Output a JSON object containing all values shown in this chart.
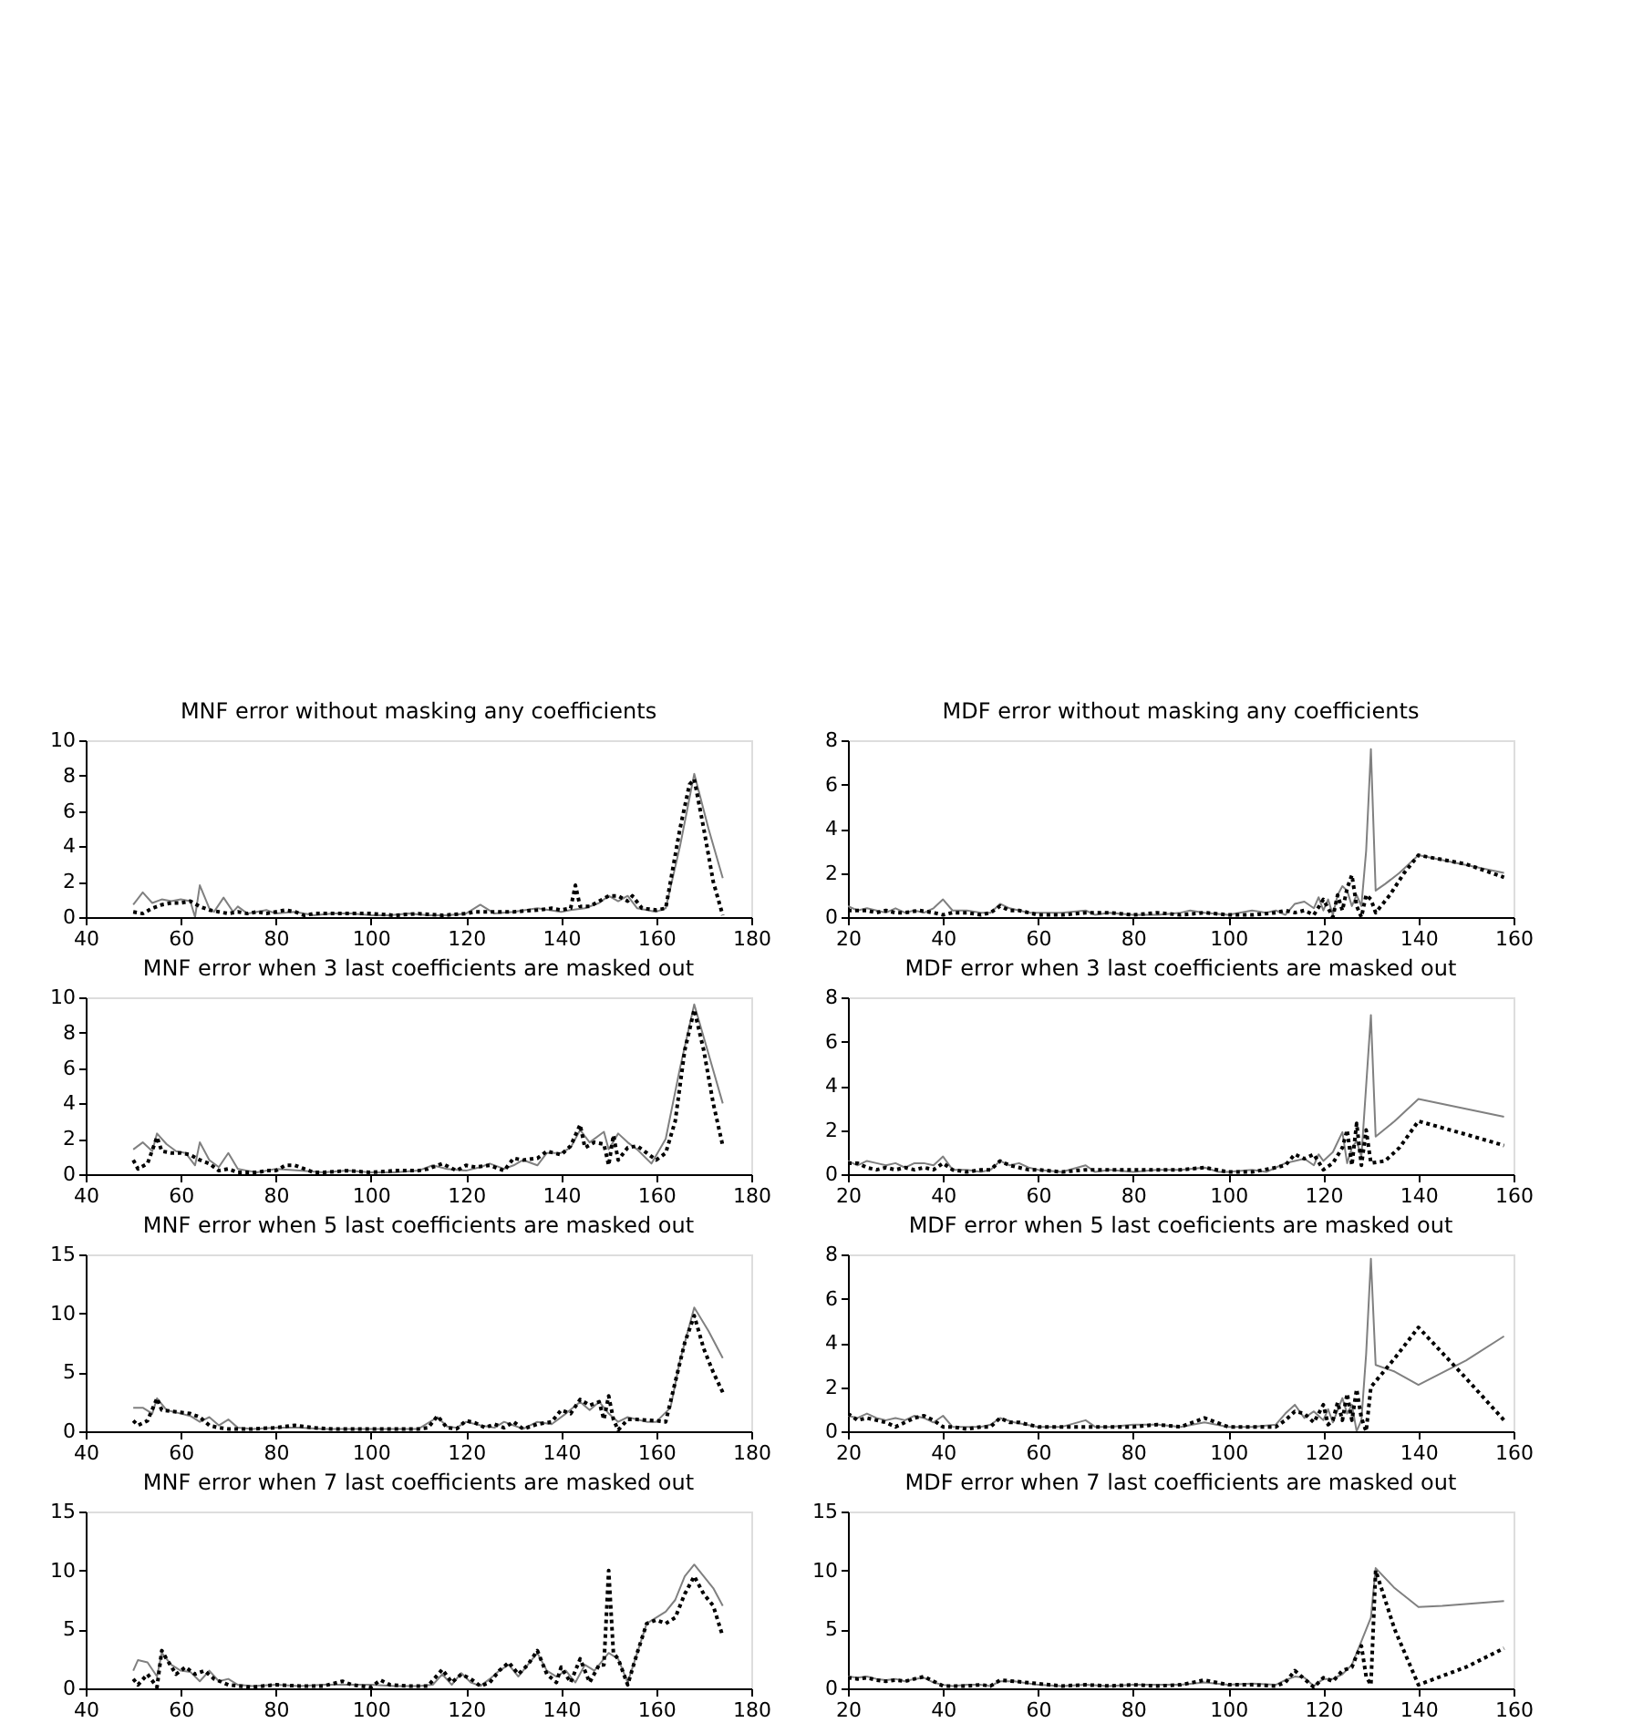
{
  "chart_data": [
    {
      "type": "line",
      "title": "MNF error without masking any coefficients",
      "xlim": [
        40,
        180
      ],
      "xticks": [
        40,
        60,
        80,
        100,
        120,
        140,
        160,
        180
      ],
      "ylim": [
        0,
        10
      ],
      "yticks": [
        0,
        2,
        4,
        6,
        8,
        10
      ],
      "grid": false,
      "series": [
        {
          "color": "#808080",
          "line_style": "solid",
          "x": [
            50,
            52,
            54,
            56,
            58,
            60,
            62,
            63,
            64,
            66,
            67,
            69,
            71,
            72,
            74,
            76,
            78,
            80,
            84,
            88,
            92,
            96,
            100,
            104,
            108,
            112,
            116,
            120,
            123,
            126,
            130,
            135,
            140,
            142,
            145,
            148,
            150,
            152,
            154,
            156,
            160,
            162,
            165,
            168,
            171,
            174
          ],
          "values": [
            0.7,
            1.4,
            0.8,
            1.0,
            0.9,
            1.0,
            0.9,
            0.0,
            1.8,
            0.5,
            0.3,
            1.1,
            0.3,
            0.6,
            0.2,
            0.3,
            0.4,
            0.2,
            0.3,
            0.1,
            0.2,
            0.2,
            0.1,
            0.1,
            0.2,
            0.1,
            0.1,
            0.2,
            0.7,
            0.2,
            0.3,
            0.5,
            0.3,
            0.4,
            0.5,
            0.8,
            1.2,
            0.9,
            1.2,
            0.5,
            0.3,
            0.5,
            4.0,
            8.1,
            5.0,
            2.2
          ]
        },
        {
          "color": "#000000",
          "line_style": "dotted",
          "x": [
            50,
            52,
            54,
            56,
            58,
            60,
            62,
            64,
            66,
            68,
            70,
            72,
            74,
            76,
            78,
            80,
            82,
            84,
            86,
            88,
            90,
            95,
            100,
            105,
            110,
            115,
            120,
            122,
            125,
            130,
            135,
            138,
            140,
            142,
            143,
            144,
            146,
            148,
            150,
            152,
            154,
            155,
            157,
            160,
            162,
            163,
            165,
            167,
            168,
            170,
            172,
            174
          ],
          "values": [
            0.3,
            0.2,
            0.5,
            0.7,
            0.8,
            0.8,
            0.9,
            0.6,
            0.4,
            0.3,
            0.2,
            0.3,
            0.2,
            0.3,
            0.2,
            0.3,
            0.4,
            0.3,
            0.1,
            0.2,
            0.2,
            0.2,
            0.2,
            0.1,
            0.2,
            0.1,
            0.2,
            0.3,
            0.3,
            0.3,
            0.4,
            0.5,
            0.4,
            0.5,
            1.8,
            0.6,
            0.6,
            0.9,
            1.2,
            1.2,
            0.9,
            1.2,
            0.5,
            0.4,
            0.5,
            2.0,
            5.0,
            7.5,
            7.8,
            5.0,
            2.0,
            0.1
          ]
        }
      ]
    },
    {
      "type": "line",
      "title": "MDF error without masking any coefficients",
      "xlim": [
        20,
        160
      ],
      "xticks": [
        20,
        40,
        60,
        80,
        100,
        120,
        140,
        160
      ],
      "ylim": [
        0,
        8
      ],
      "yticks": [
        0,
        2,
        4,
        6,
        8
      ],
      "grid": false,
      "series": [
        {
          "color": "#808080",
          "line_style": "solid",
          "x": [
            20,
            22,
            24,
            26,
            28,
            30,
            32,
            34,
            36,
            38,
            40,
            42,
            45,
            48,
            50,
            52,
            54,
            56,
            58,
            60,
            65,
            70,
            72,
            75,
            80,
            85,
            90,
            92,
            95,
            100,
            105,
            108,
            110,
            112,
            114,
            116,
            118,
            119,
            120,
            121,
            122,
            123,
            124,
            125,
            126,
            127,
            128,
            129,
            130,
            131,
            133,
            136,
            140,
            158
          ],
          "values": [
            0.5,
            0.3,
            0.4,
            0.3,
            0.2,
            0.4,
            0.2,
            0.3,
            0.2,
            0.4,
            0.8,
            0.3,
            0.3,
            0.2,
            0.2,
            0.6,
            0.4,
            0.3,
            0.2,
            0.2,
            0.2,
            0.3,
            0.1,
            0.2,
            0.1,
            0.1,
            0.2,
            0.3,
            0.2,
            0.1,
            0.3,
            0.2,
            0.3,
            0.1,
            0.6,
            0.7,
            0.4,
            0.9,
            0.3,
            0.8,
            0.1,
            1.0,
            1.4,
            1.2,
            0.5,
            1.0,
            0.5,
            3.0,
            7.6,
            1.2,
            1.5,
            2.0,
            2.8,
            2.0
          ]
        },
        {
          "color": "#000000",
          "line_style": "dotted",
          "x": [
            20,
            22,
            24,
            26,
            28,
            30,
            32,
            35,
            38,
            40,
            42,
            45,
            48,
            50,
            52,
            54,
            56,
            58,
            60,
            65,
            70,
            75,
            80,
            85,
            90,
            95,
            100,
            105,
            110,
            112,
            114,
            116,
            118,
            120,
            122,
            123,
            124,
            125,
            126,
            127,
            128,
            129,
            130,
            131,
            134,
            137,
            140,
            150,
            158
          ],
          "values": [
            0.3,
            0.3,
            0.3,
            0.2,
            0.3,
            0.2,
            0.2,
            0.3,
            0.2,
            0.1,
            0.2,
            0.2,
            0.1,
            0.2,
            0.5,
            0.3,
            0.3,
            0.2,
            0.1,
            0.1,
            0.2,
            0.2,
            0.1,
            0.2,
            0.1,
            0.2,
            0.1,
            0.1,
            0.2,
            0.3,
            0.2,
            0.3,
            0.1,
            0.8,
            0.0,
            1.0,
            0.3,
            1.3,
            1.9,
            0.5,
            0.0,
            1.0,
            0.8,
            0.2,
            1.0,
            2.0,
            2.8,
            2.4,
            1.8
          ]
        }
      ]
    },
    {
      "type": "line",
      "title": "MNF error when 3 last coefficients are masked out",
      "xlim": [
        40,
        180
      ],
      "xticks": [
        40,
        60,
        80,
        100,
        120,
        140,
        160,
        180
      ],
      "ylim": [
        0,
        10
      ],
      "yticks": [
        0,
        2,
        4,
        6,
        8,
        10
      ],
      "grid": false,
      "series": [
        {
          "color": "#808080",
          "line_style": "solid",
          "x": [
            50,
            52,
            54,
            55,
            57,
            59,
            61,
            63,
            64,
            66,
            68,
            70,
            72,
            74,
            76,
            78,
            80,
            85,
            90,
            95,
            100,
            105,
            110,
            113,
            116,
            120,
            123,
            125,
            128,
            130,
            132,
            135,
            137,
            140,
            142,
            144,
            146,
            149,
            150,
            152,
            154,
            156,
            159,
            162,
            165,
            168,
            171,
            174
          ],
          "values": [
            1.4,
            1.8,
            1.3,
            2.3,
            1.7,
            1.3,
            1.2,
            0.5,
            1.8,
            0.8,
            0.4,
            1.2,
            0.3,
            0.2,
            0.1,
            0.2,
            0.3,
            0.2,
            0.1,
            0.2,
            0.1,
            0.1,
            0.2,
            0.5,
            0.3,
            0.2,
            0.4,
            0.6,
            0.3,
            0.5,
            0.8,
            0.5,
            1.2,
            1.2,
            1.5,
            2.5,
            1.8,
            2.4,
            1.4,
            2.3,
            1.8,
            1.4,
            0.6,
            2.0,
            6.0,
            9.6,
            6.8,
            4.0
          ]
        },
        {
          "color": "#000000",
          "line_style": "dotted",
          "x": [
            50,
            51,
            53,
            55,
            56,
            58,
            60,
            62,
            64,
            66,
            68,
            70,
            72,
            74,
            76,
            78,
            80,
            82,
            84,
            86,
            88,
            90,
            95,
            100,
            105,
            110,
            112,
            115,
            118,
            120,
            122,
            125,
            128,
            130,
            132,
            135,
            137,
            140,
            142,
            144,
            145,
            147,
            149,
            150,
            151,
            152,
            154,
            156,
            158,
            160,
            162,
            164,
            166,
            168,
            170,
            172,
            174
          ],
          "values": [
            0.8,
            0.3,
            0.6,
            2.1,
            1.3,
            1.2,
            1.2,
            1.1,
            0.8,
            0.6,
            0.2,
            0.3,
            0.1,
            0.1,
            0.1,
            0.2,
            0.2,
            0.5,
            0.5,
            0.3,
            0.1,
            0.1,
            0.2,
            0.1,
            0.2,
            0.2,
            0.3,
            0.6,
            0.2,
            0.5,
            0.4,
            0.5,
            0.2,
            0.9,
            0.8,
            0.9,
            1.3,
            1.1,
            1.6,
            2.8,
            1.5,
            1.8,
            1.7,
            0.5,
            2.2,
            0.8,
            1.5,
            1.6,
            1.2,
            0.8,
            1.2,
            3.0,
            7.0,
            9.3,
            7.0,
            4.0,
            1.6
          ]
        }
      ]
    },
    {
      "type": "line",
      "title": "MDF error when 3 last coefficients are masked out",
      "xlim": [
        20,
        160
      ],
      "xticks": [
        20,
        40,
        60,
        80,
        100,
        120,
        140,
        160
      ],
      "ylim": [
        0,
        8
      ],
      "yticks": [
        0,
        2,
        4,
        6,
        8
      ],
      "grid": false,
      "series": [
        {
          "color": "#808080",
          "line_style": "solid",
          "x": [
            20,
            22,
            24,
            26,
            28,
            30,
            32,
            34,
            36,
            38,
            40,
            42,
            45,
            48,
            50,
            52,
            54,
            56,
            58,
            60,
            65,
            70,
            72,
            75,
            80,
            85,
            90,
            95,
            98,
            100,
            105,
            108,
            110,
            112,
            114,
            116,
            118,
            119,
            120,
            122,
            124,
            125,
            126,
            127,
            128,
            129,
            130,
            131,
            135,
            140,
            158
          ],
          "values": [
            0.6,
            0.4,
            0.6,
            0.5,
            0.4,
            0.5,
            0.3,
            0.5,
            0.5,
            0.4,
            0.8,
            0.2,
            0.2,
            0.1,
            0.2,
            0.6,
            0.4,
            0.5,
            0.3,
            0.2,
            0.1,
            0.4,
            0.1,
            0.2,
            0.1,
            0.2,
            0.2,
            0.3,
            0.1,
            0.1,
            0.2,
            0.1,
            0.3,
            0.5,
            0.6,
            0.7,
            0.4,
            0.9,
            0.6,
            1.0,
            1.9,
            0.5,
            1.2,
            1.5,
            0.8,
            4.0,
            7.2,
            1.7,
            2.4,
            3.4,
            2.6
          ]
        },
        {
          "color": "#000000",
          "line_style": "dotted",
          "x": [
            20,
            22,
            24,
            26,
            28,
            30,
            32,
            34,
            36,
            38,
            40,
            42,
            45,
            48,
            50,
            52,
            54,
            56,
            58,
            60,
            65,
            70,
            75,
            80,
            85,
            90,
            95,
            100,
            105,
            110,
            112,
            114,
            116,
            118,
            120,
            122,
            124,
            125,
            126,
            127,
            128,
            129,
            130,
            133,
            136,
            140,
            150,
            158
          ],
          "values": [
            0.5,
            0.5,
            0.3,
            0.2,
            0.3,
            0.2,
            0.3,
            0.2,
            0.3,
            0.2,
            0.5,
            0.2,
            0.1,
            0.2,
            0.2,
            0.6,
            0.4,
            0.3,
            0.2,
            0.2,
            0.1,
            0.2,
            0.2,
            0.2,
            0.2,
            0.2,
            0.3,
            0.1,
            0.1,
            0.3,
            0.4,
            0.9,
            0.7,
            0.9,
            0.2,
            0.5,
            1.2,
            2.0,
            0.4,
            2.3,
            0.4,
            2.0,
            0.5,
            0.6,
            1.2,
            2.4,
            1.8,
            1.3
          ]
        }
      ]
    },
    {
      "type": "line",
      "title": "MNF error when 5 last coefficients are masked out",
      "xlim": [
        40,
        180
      ],
      "xticks": [
        40,
        60,
        80,
        100,
        120,
        140,
        160,
        180
      ],
      "ylim": [
        0,
        15
      ],
      "yticks": [
        0,
        5,
        10,
        15
      ],
      "grid": false,
      "series": [
        {
          "color": "#808080",
          "line_style": "solid",
          "x": [
            50,
            52,
            54,
            55,
            57,
            60,
            62,
            64,
            66,
            68,
            70,
            72,
            75,
            80,
            85,
            90,
            95,
            100,
            105,
            110,
            114,
            116,
            118,
            120,
            123,
            126,
            128,
            130,
            132,
            135,
            138,
            141,
            144,
            146,
            148,
            150,
            152,
            154,
            158,
            160,
            163,
            165,
            168,
            171,
            174
          ],
          "values": [
            2.0,
            2.0,
            1.5,
            2.8,
            1.8,
            1.5,
            1.3,
            0.8,
            1.2,
            0.5,
            1.0,
            0.3,
            0.2,
            0.3,
            0.3,
            0.2,
            0.2,
            0.2,
            0.2,
            0.2,
            1.2,
            0.4,
            0.3,
            0.8,
            0.5,
            0.3,
            0.8,
            0.5,
            0.2,
            0.8,
            0.6,
            1.5,
            2.5,
            1.8,
            2.5,
            1.5,
            0.8,
            1.2,
            0.8,
            0.8,
            2.0,
            6.0,
            10.5,
            8.5,
            6.2
          ]
        },
        {
          "color": "#000000",
          "line_style": "dotted",
          "x": [
            50,
            51,
            53,
            55,
            56,
            58,
            60,
            62,
            64,
            66,
            68,
            70,
            75,
            80,
            84,
            88,
            92,
            96,
            100,
            105,
            110,
            112,
            114,
            116,
            118,
            120,
            122,
            124,
            126,
            128,
            130,
            132,
            135,
            138,
            140,
            142,
            144,
            146,
            148,
            149,
            150,
            151,
            152,
            154,
            156,
            160,
            162,
            163,
            166,
            168,
            170,
            172,
            174
          ],
          "values": [
            0.9,
            0.5,
            0.9,
            2.8,
            1.8,
            1.7,
            1.6,
            1.5,
            1.2,
            0.5,
            0.3,
            0.2,
            0.2,
            0.3,
            0.5,
            0.3,
            0.2,
            0.2,
            0.2,
            0.2,
            0.2,
            0.3,
            1.3,
            0.3,
            0.2,
            0.9,
            0.7,
            0.3,
            0.6,
            0.3,
            0.8,
            0.2,
            0.6,
            0.8,
            1.8,
            1.5,
            2.7,
            2.2,
            2.5,
            1.0,
            3.0,
            1.0,
            0.1,
            1.0,
            1.0,
            0.9,
            0.8,
            2.5,
            7.5,
            9.8,
            7.0,
            5.0,
            3.3
          ]
        }
      ]
    },
    {
      "type": "line",
      "title": "MDF error when 5 last coeficients are masked out",
      "xlim": [
        20,
        160
      ],
      "xticks": [
        20,
        40,
        60,
        80,
        100,
        120,
        140,
        160
      ],
      "ylim": [
        0,
        8
      ],
      "yticks": [
        0,
        2,
        4,
        6,
        8
      ],
      "grid": false,
      "series": [
        {
          "color": "#808080",
          "line_style": "solid",
          "x": [
            20,
            22,
            24,
            26,
            28,
            30,
            32,
            34,
            36,
            38,
            40,
            42,
            45,
            48,
            50,
            52,
            55,
            60,
            65,
            70,
            72,
            75,
            80,
            85,
            90,
            95,
            100,
            105,
            110,
            112,
            114,
            116,
            118,
            120,
            121,
            122,
            124,
            125,
            126,
            127,
            128,
            129,
            130,
            131,
            135,
            140,
            150,
            158
          ],
          "values": [
            0.7,
            0.6,
            0.8,
            0.6,
            0.5,
            0.6,
            0.5,
            0.7,
            0.6,
            0.4,
            0.7,
            0.2,
            0.2,
            0.2,
            0.3,
            0.6,
            0.4,
            0.2,
            0.2,
            0.5,
            0.2,
            0.2,
            0.3,
            0.3,
            0.2,
            0.4,
            0.2,
            0.2,
            0.3,
            0.8,
            1.2,
            0.6,
            0.9,
            0.5,
            1.0,
            0.4,
            1.5,
            0.8,
            1.2,
            0.0,
            0.5,
            3.5,
            7.8,
            3.0,
            2.7,
            2.1,
            3.2,
            4.3
          ]
        },
        {
          "color": "#000000",
          "line_style": "dotted",
          "x": [
            20,
            22,
            24,
            26,
            28,
            30,
            32,
            34,
            36,
            38,
            40,
            42,
            45,
            48,
            50,
            52,
            54,
            56,
            58,
            60,
            65,
            70,
            75,
            80,
            85,
            90,
            95,
            100,
            105,
            110,
            112,
            114,
            116,
            118,
            120,
            121,
            122,
            123,
            124,
            125,
            126,
            127,
            128,
            129,
            130,
            135,
            140,
            150,
            158
          ],
          "values": [
            0.8,
            0.5,
            0.6,
            0.5,
            0.4,
            0.2,
            0.4,
            0.6,
            0.7,
            0.5,
            0.2,
            0.2,
            0.1,
            0.2,
            0.2,
            0.6,
            0.4,
            0.4,
            0.3,
            0.2,
            0.2,
            0.2,
            0.2,
            0.2,
            0.3,
            0.2,
            0.6,
            0.2,
            0.2,
            0.2,
            0.5,
            0.9,
            0.8,
            0.4,
            1.2,
            0.3,
            0.5,
            1.3,
            0.5,
            1.7,
            0.5,
            1.9,
            0.6,
            0.0,
            2.0,
            3.3,
            4.7,
            2.4,
            0.5
          ]
        }
      ]
    },
    {
      "type": "line",
      "title": "MNF error when 7 last coefficients are masked out",
      "xlim": [
        40,
        180
      ],
      "xticks": [
        40,
        60,
        80,
        100,
        120,
        140,
        160,
        180
      ],
      "ylim": [
        0,
        15
      ],
      "yticks": [
        0,
        5,
        10,
        15
      ],
      "grid": false,
      "series": [
        {
          "color": "#808080",
          "line_style": "solid",
          "x": [
            50,
            51,
            53,
            55,
            56,
            58,
            60,
            62,
            64,
            66,
            68,
            70,
            72,
            75,
            80,
            85,
            90,
            95,
            100,
            105,
            110,
            113,
            115,
            117,
            119,
            121,
            123,
            125,
            127,
            129,
            131,
            133,
            135,
            137,
            139,
            141,
            143,
            145,
            147,
            148,
            150,
            152,
            154,
            156,
            158,
            160,
            162,
            164,
            166,
            168,
            170,
            172,
            174
          ],
          "values": [
            1.5,
            2.4,
            2.2,
            1.0,
            3.0,
            2.0,
            1.5,
            1.4,
            0.6,
            1.5,
            0.6,
            0.8,
            0.3,
            0.2,
            0.3,
            0.2,
            0.3,
            0.3,
            0.3,
            0.2,
            0.2,
            0.3,
            1.2,
            0.3,
            1.3,
            0.5,
            0.2,
            0.8,
            1.5,
            2.0,
            1.0,
            2.0,
            3.0,
            1.5,
            1.0,
            1.5,
            0.5,
            2.0,
            1.5,
            2.0,
            3.0,
            2.5,
            0.5,
            3.0,
            5.5,
            6.0,
            6.5,
            7.5,
            9.5,
            10.5,
            9.5,
            8.5,
            7.0
          ]
        },
        {
          "color": "#000000",
          "line_style": "dotted",
          "x": [
            50,
            51,
            53,
            55,
            56,
            57,
            59,
            61,
            63,
            65,
            67,
            70,
            72,
            75,
            80,
            85,
            90,
            94,
            96,
            100,
            102,
            104,
            108,
            112,
            115,
            117,
            119,
            121,
            123,
            125,
            127,
            129,
            131,
            133,
            135,
            137,
            139,
            140,
            142,
            144,
            146,
            148,
            149,
            150,
            151,
            152,
            154,
            156,
            158,
            160,
            162,
            164,
            166,
            168,
            170,
            172,
            174
          ],
          "values": [
            0.8,
            0.3,
            1.2,
            0.1,
            3.2,
            2.5,
            1.2,
            1.8,
            1.2,
            1.5,
            0.8,
            0.3,
            0.2,
            0.1,
            0.3,
            0.2,
            0.2,
            0.6,
            0.3,
            0.1,
            0.7,
            0.3,
            0.2,
            0.2,
            1.6,
            0.5,
            1.2,
            0.8,
            0.2,
            0.5,
            1.5,
            2.2,
            1.2,
            2.0,
            3.2,
            1.2,
            0.5,
            1.8,
            0.5,
            2.5,
            0.5,
            2.0,
            2.0,
            10.0,
            3.0,
            2.5,
            0.3,
            3.0,
            5.5,
            5.8,
            5.5,
            6.0,
            8.0,
            9.5,
            8.0,
            7.0,
            4.4
          ]
        }
      ]
    },
    {
      "type": "line",
      "title": "MDF error when 7 last coefficients are masked out",
      "xlim": [
        20,
        160
      ],
      "xticks": [
        20,
        40,
        60,
        80,
        100,
        120,
        140,
        160
      ],
      "ylim": [
        0,
        15
      ],
      "yticks": [
        0,
        5,
        10,
        15
      ],
      "grid": false,
      "series": [
        {
          "color": "#808080",
          "line_style": "solid",
          "x": [
            20,
            22,
            24,
            26,
            28,
            30,
            32,
            34,
            36,
            38,
            40,
            42,
            45,
            48,
            50,
            52,
            55,
            60,
            65,
            70,
            75,
            80,
            85,
            90,
            95,
            100,
            105,
            110,
            112,
            114,
            116,
            118,
            120,
            122,
            124,
            126,
            128,
            129,
            130,
            131,
            135,
            140,
            145,
            158
          ],
          "values": [
            1.0,
            0.9,
            1.0,
            0.8,
            0.7,
            0.8,
            0.6,
            0.8,
            0.9,
            0.5,
            0.3,
            0.2,
            0.3,
            0.3,
            0.2,
            0.6,
            0.6,
            0.3,
            0.2,
            0.3,
            0.2,
            0.3,
            0.3,
            0.3,
            0.5,
            0.3,
            0.4,
            0.3,
            0.7,
            1.0,
            0.9,
            0.2,
            0.8,
            0.8,
            1.2,
            2.0,
            4.0,
            5.0,
            6.0,
            10.2,
            8.5,
            6.9,
            7.0,
            7.4
          ]
        },
        {
          "color": "#000000",
          "line_style": "dotted",
          "x": [
            20,
            22,
            24,
            26,
            28,
            30,
            32,
            34,
            36,
            38,
            40,
            42,
            45,
            48,
            50,
            52,
            55,
            60,
            65,
            70,
            75,
            80,
            85,
            90,
            95,
            100,
            105,
            110,
            112,
            114,
            116,
            118,
            120,
            122,
            124,
            126,
            127,
            128,
            129,
            130,
            131,
            135,
            140,
            150,
            158
          ],
          "values": [
            0.9,
            0.8,
            0.9,
            0.7,
            0.6,
            0.7,
            0.6,
            0.8,
            1.0,
            0.6,
            0.2,
            0.2,
            0.2,
            0.3,
            0.2,
            0.7,
            0.6,
            0.4,
            0.2,
            0.3,
            0.2,
            0.3,
            0.2,
            0.3,
            0.7,
            0.3,
            0.3,
            0.2,
            0.5,
            1.5,
            0.8,
            0.1,
            0.9,
            0.6,
            1.5,
            1.8,
            2.8,
            3.6,
            1.0,
            0.3,
            10.0,
            5.0,
            0.3,
            1.8,
            3.4
          ]
        }
      ]
    }
  ]
}
